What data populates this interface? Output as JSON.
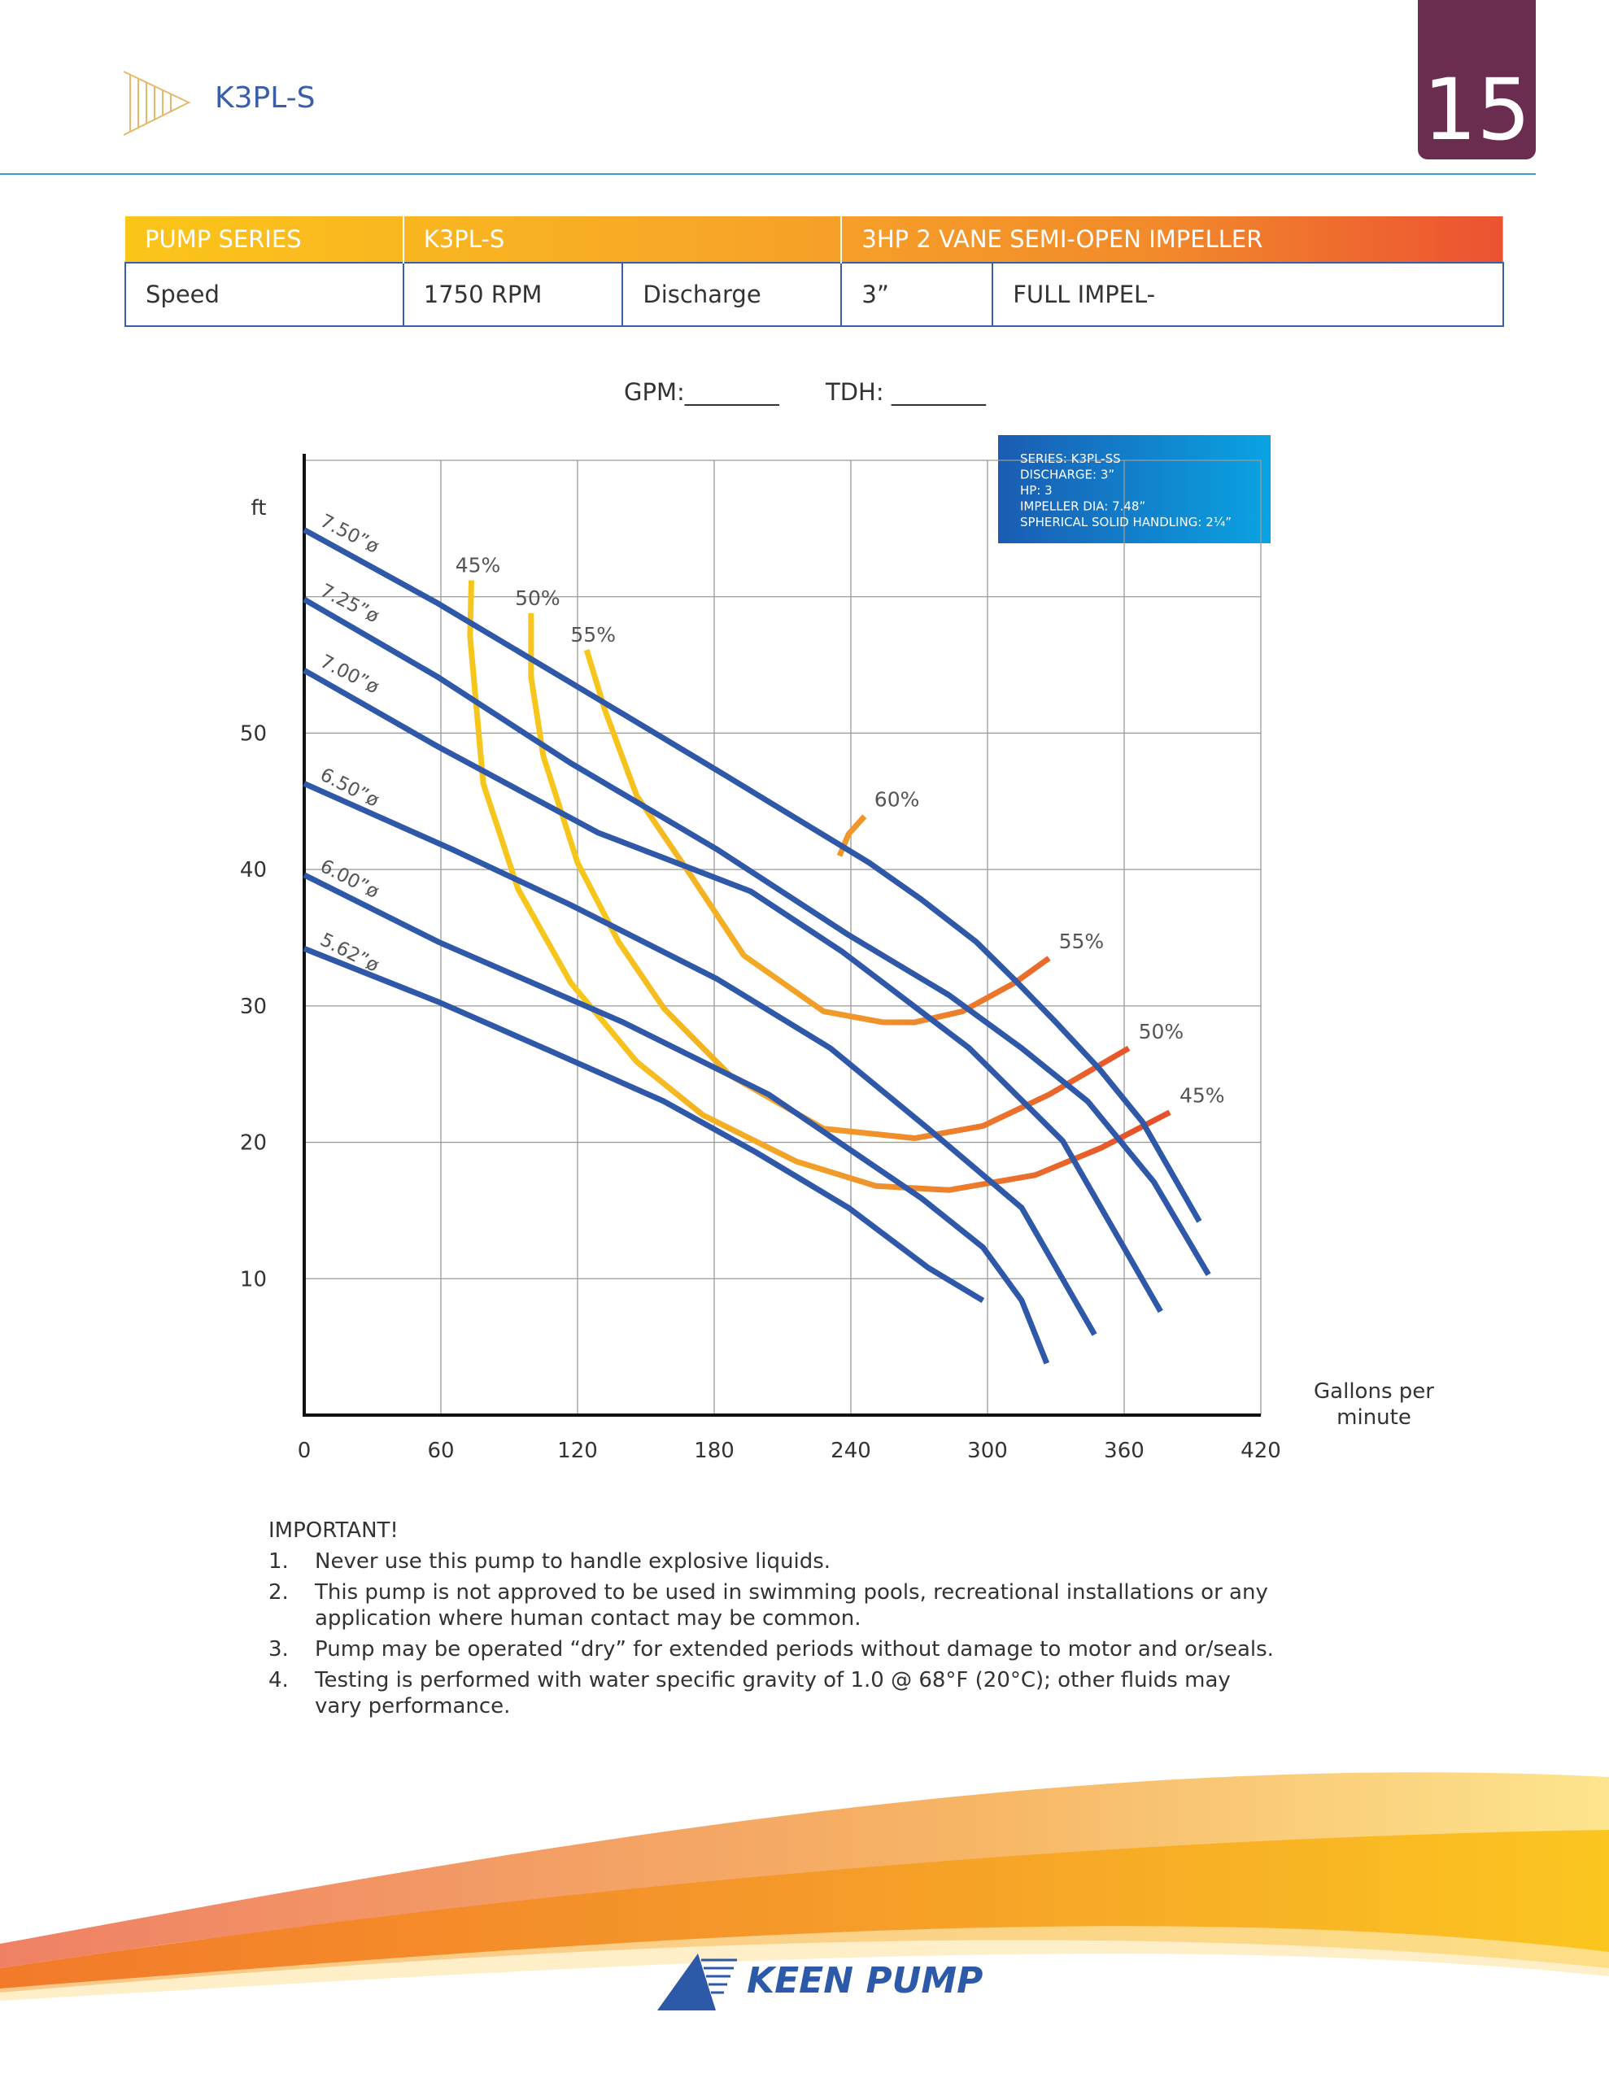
{
  "header": {
    "title": "K3PL-S",
    "page_number": "15"
  },
  "table": {
    "header": [
      "PUMP SERIES",
      "K3PL-S",
      "3HP 2 VANE SEMI-OPEN IMPELLER"
    ],
    "rows": [
      [
        "Speed",
        "1750 RPM",
        "Discharge",
        "3”",
        "FULL IMPEL-"
      ]
    ]
  },
  "form": {
    "gpm": "GPM:________",
    "tdh": "TDH: ________"
  },
  "chart_data": {
    "type": "line",
    "y_label": "ft",
    "x_label": "Gallons per minute",
    "xlim": [
      0,
      420
    ],
    "xticks": [
      0,
      60,
      120,
      180,
      240,
      300,
      360,
      420
    ],
    "ylim": [
      0,
      70
    ],
    "yticks": [
      10,
      20,
      30,
      40,
      50
    ],
    "ygrid": [
      10,
      20,
      30,
      40,
      50,
      60,
      70
    ],
    "grid": true,
    "info_box": [
      "SERIES: K3PL-SS",
      "DISCHARGE: 3”",
      "HP: 3",
      "IMPELLER DIA: 7.48”",
      "SPHERICAL SOLID HANDLING: 2¼”"
    ],
    "series": [
      {
        "name": "7.50”ø",
        "color": "#2f59a8",
        "x": [
          0,
          58.8,
          117,
          181,
          248,
          271,
          295,
          312,
          330,
          349,
          368,
          393
        ],
        "values": [
          64.9,
          59.5,
          53.7,
          47.3,
          40.5,
          37.8,
          34.7,
          31.9,
          28.8,
          25.4,
          21.5,
          14.2
        ]
      },
      {
        "name": "7.25”ø",
        "color": "#2f59a8",
        "x": [
          0,
          58.8,
          117,
          181,
          239,
          283,
          315,
          344,
          373,
          397
        ],
        "values": [
          59.8,
          54.1,
          47.8,
          41.5,
          35.2,
          30.8,
          26.9,
          23.0,
          17.1,
          10.3
        ]
      },
      {
        "name": "7.00”ø",
        "color": "#2f59a8",
        "x": [
          0,
          58.8,
          129,
          196,
          236,
          292,
          333,
          376
        ],
        "values": [
          54.6,
          49.0,
          42.7,
          38.4,
          34.0,
          26.9,
          20.1,
          7.6
        ]
      },
      {
        "name": "6.50”ø",
        "color": "#2f59a8",
        "x": [
          0,
          64.6,
          117,
          181,
          231,
          274,
          315,
          347
        ],
        "values": [
          46.3,
          41.5,
          37.4,
          32.0,
          26.9,
          21.0,
          15.2,
          5.9
        ]
      },
      {
        "name": "6.00”ø",
        "color": "#2f59a8",
        "x": [
          0,
          58.8,
          140,
          204,
          271,
          298,
          315,
          326
        ],
        "values": [
          39.6,
          34.7,
          28.8,
          23.5,
          15.9,
          12.3,
          8.4,
          3.8
        ]
      },
      {
        "name": "5.62”ø",
        "color": "#2f59a8",
        "x": [
          0,
          58.8,
          108,
          158,
          198,
          239,
          274,
          298
        ],
        "values": [
          34.2,
          30.3,
          26.7,
          23.0,
          19.3,
          15.2,
          10.8,
          8.4
        ]
      }
    ],
    "efficiency_colors": [
      "#f7c61d",
      "#f0922c",
      "#e6502a"
    ],
    "efficiency_curves": [
      {
        "name": "45%",
        "x": [
          73.4,
          72.8,
          78.6,
          93.8,
          117,
          146,
          175,
          216,
          251,
          283,
          321,
          350,
          380
        ],
        "values": [
          61.2,
          57.1,
          46.3,
          38.6,
          31.7,
          25.9,
          22.0,
          18.6,
          16.8,
          16.5,
          17.6,
          19.6,
          22.2
        ]
      },
      {
        "name": "50%",
        "x": [
          99.6,
          99.6,
          105,
          120,
          138,
          158,
          187,
          228,
          268,
          298,
          327,
          362
        ],
        "values": [
          58.8,
          54.1,
          48.3,
          40.5,
          34.7,
          29.8,
          24.9,
          21.0,
          20.3,
          21.2,
          23.5,
          26.9
        ]
      },
      {
        "name": "55%",
        "x": [
          124,
          132,
          146,
          170,
          193,
          228,
          254,
          268,
          289,
          312,
          327
        ],
        "values": [
          56.1,
          51.7,
          45.4,
          39.5,
          33.7,
          29.6,
          28.8,
          28.8,
          29.6,
          31.7,
          33.5
        ]
      },
      {
        "name": "60%",
        "x": [
          235,
          239,
          246
        ],
        "values": [
          41.0,
          42.6,
          43.9
        ]
      }
    ]
  },
  "notes": {
    "title": "IMPORTANT!",
    "items": [
      {
        "number": "1.",
        "text": "Never use this pump to handle explosive liquids."
      },
      {
        "number": "2.",
        "text": "This pump is not approved to be used in swimming pools, recreational installations or any application where human contact may be common."
      },
      {
        "number": "3.",
        "text": "Pump may be operated “dry” for extended periods without damage to motor and or/seals."
      },
      {
        "number": "4.",
        "text": "Testing is performed with water specific gravity of 1.0 @ 68°F (20°C); other fluids may vary performance."
      }
    ]
  },
  "footer": {
    "brand": "KEEN PUMP"
  }
}
